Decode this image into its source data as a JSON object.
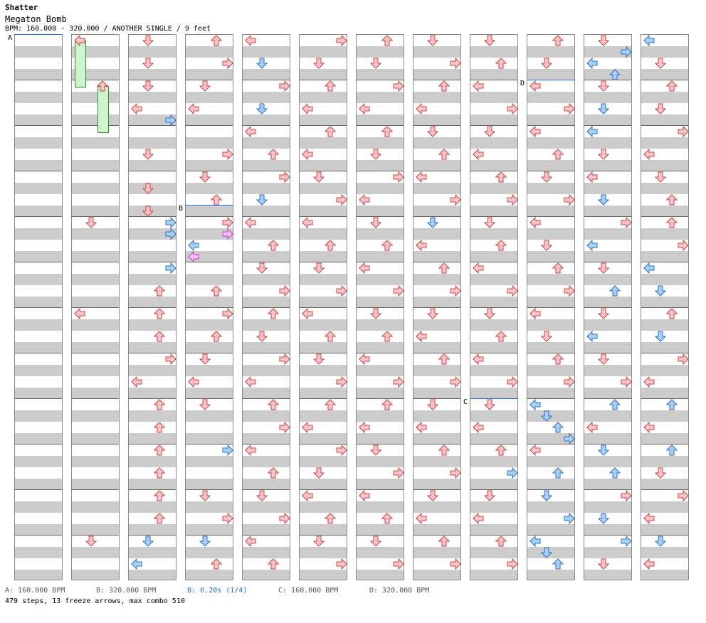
{
  "header": {
    "song_title": "Shatter",
    "artist": "Megaton Bomb",
    "chart_info": "BPM: 160.000 - 320.000 / ANOTHER SINGLE / 9 feet"
  },
  "legend": [
    {
      "text": "A: 160.000 BPM",
      "highlight": false
    },
    {
      "text": "B: 320.000 BPM",
      "highlight": false
    },
    {
      "text": "B: 0.20s (1/4)",
      "highlight": true
    },
    {
      "text": "C: 160.000 BPM",
      "highlight": false
    },
    {
      "text": "D: 320.000 BPM",
      "highlight": false
    }
  ],
  "stats": "479 steps, 13 freeze arrows, max combo 510",
  "markers": [
    {
      "label": "A",
      "column": 1,
      "beat": 0
    },
    {
      "label": "B",
      "column": 4,
      "beat": 60
    },
    {
      "label": "C",
      "column": 9,
      "beat": 128
    },
    {
      "label": "D",
      "column": 10,
      "beat": 16
    }
  ],
  "colors": {
    "quarter_fill": "#ffc8c8",
    "quarter_stroke": "#d04040",
    "eighth_fill": "#a8d0ff",
    "eighth_stroke": "#3070c0",
    "sixteenth_fill": "#ffc0ff",
    "sixteenth_stroke": "#c040c0",
    "freeze_fill": "#ccf5cc",
    "freeze_stroke": "#408040",
    "marker_line": "#2a6ed6"
  },
  "column_count": 12,
  "beats_per_column": 192,
  "notes": [
    [],
    [
      [
        0,
        0,
        "r",
        true
      ],
      [
        16,
        2,
        "r",
        true
      ],
      [
        64,
        1,
        "r"
      ],
      [
        96,
        0,
        "r"
      ],
      [
        176,
        1,
        "r"
      ]
    ],
    [
      [
        0,
        1,
        "r"
      ],
      [
        8,
        1,
        "r"
      ],
      [
        16,
        1,
        "r"
      ],
      [
        24,
        0,
        "r"
      ],
      [
        28,
        3,
        "b"
      ],
      [
        40,
        1,
        "r"
      ],
      [
        52,
        1,
        "r"
      ],
      [
        60,
        1,
        "r"
      ],
      [
        64,
        3,
        "b"
      ],
      [
        68,
        3,
        "b"
      ],
      [
        80,
        3,
        "b"
      ],
      [
        88,
        2,
        "r"
      ],
      [
        96,
        2,
        "r"
      ],
      [
        104,
        2,
        "r"
      ],
      [
        112,
        3,
        "r"
      ],
      [
        120,
        0,
        "r"
      ],
      [
        128,
        2,
        "r"
      ],
      [
        136,
        2,
        "r"
      ],
      [
        144,
        2,
        "r"
      ],
      [
        152,
        2,
        "r"
      ],
      [
        160,
        2,
        "r"
      ],
      [
        168,
        2,
        "r"
      ],
      [
        176,
        1,
        "b"
      ],
      [
        184,
        0,
        "b"
      ]
    ],
    [
      [
        0,
        2,
        "r"
      ],
      [
        8,
        3,
        "r"
      ],
      [
        16,
        1,
        "r"
      ],
      [
        24,
        0,
        "r"
      ],
      [
        40,
        3,
        "r"
      ],
      [
        48,
        1,
        "r"
      ],
      [
        56,
        2,
        "r"
      ],
      [
        64,
        3,
        "r"
      ],
      [
        68,
        3,
        "s"
      ],
      [
        72,
        0,
        "b"
      ],
      [
        76,
        0,
        "s"
      ],
      [
        88,
        2,
        "r"
      ],
      [
        96,
        3,
        "r"
      ],
      [
        104,
        2,
        "r"
      ],
      [
        112,
        1,
        "r"
      ],
      [
        120,
        0,
        "r"
      ],
      [
        128,
        1,
        "r"
      ],
      [
        144,
        3,
        "b"
      ],
      [
        160,
        1,
        "r"
      ],
      [
        168,
        3,
        "r"
      ],
      [
        176,
        1,
        "b"
      ],
      [
        184,
        2,
        "r"
      ]
    ],
    [
      [
        0,
        0,
        "r"
      ],
      [
        8,
        1,
        "b"
      ],
      [
        16,
        3,
        "r"
      ],
      [
        24,
        1,
        "b"
      ],
      [
        32,
        0,
        "r"
      ],
      [
        40,
        2,
        "r"
      ],
      [
        48,
        3,
        "r"
      ],
      [
        56,
        1,
        "b"
      ],
      [
        64,
        0,
        "r"
      ],
      [
        72,
        2,
        "r"
      ],
      [
        80,
        1,
        "r"
      ],
      [
        88,
        3,
        "r"
      ],
      [
        96,
        2,
        "r"
      ],
      [
        104,
        1,
        "r"
      ],
      [
        112,
        3,
        "r"
      ],
      [
        120,
        0,
        "r"
      ],
      [
        128,
        2,
        "r"
      ],
      [
        136,
        3,
        "r"
      ],
      [
        144,
        0,
        "r"
      ],
      [
        152,
        2,
        "r"
      ],
      [
        160,
        1,
        "r"
      ],
      [
        168,
        3,
        "r"
      ],
      [
        176,
        0,
        "r"
      ],
      [
        184,
        2,
        "r"
      ]
    ],
    [
      [
        0,
        3,
        "r"
      ],
      [
        8,
        1,
        "r"
      ],
      [
        16,
        2,
        "r"
      ],
      [
        24,
        0,
        "r"
      ],
      [
        32,
        2,
        "r"
      ],
      [
        40,
        0,
        "r"
      ],
      [
        48,
        1,
        "r"
      ],
      [
        56,
        3,
        "r"
      ],
      [
        64,
        0,
        "r"
      ],
      [
        72,
        2,
        "r"
      ],
      [
        80,
        1,
        "r"
      ],
      [
        88,
        3,
        "r"
      ],
      [
        96,
        0,
        "r"
      ],
      [
        104,
        2,
        "r"
      ],
      [
        112,
        1,
        "r"
      ],
      [
        120,
        3,
        "r"
      ],
      [
        128,
        2,
        "r"
      ],
      [
        136,
        0,
        "r"
      ],
      [
        144,
        3,
        "r"
      ],
      [
        152,
        1,
        "r"
      ],
      [
        160,
        0,
        "r"
      ],
      [
        168,
        2,
        "r"
      ],
      [
        176,
        1,
        "r"
      ],
      [
        184,
        3,
        "r"
      ]
    ],
    [
      [
        0,
        2,
        "r"
      ],
      [
        8,
        1,
        "r"
      ],
      [
        16,
        3,
        "r"
      ],
      [
        24,
        0,
        "r"
      ],
      [
        32,
        2,
        "r"
      ],
      [
        40,
        1,
        "r"
      ],
      [
        48,
        3,
        "r"
      ],
      [
        56,
        0,
        "r"
      ],
      [
        64,
        1,
        "r"
      ],
      [
        72,
        2,
        "r"
      ],
      [
        80,
        0,
        "r"
      ],
      [
        88,
        3,
        "r"
      ],
      [
        96,
        1,
        "r"
      ],
      [
        104,
        2,
        "r"
      ],
      [
        112,
        0,
        "r"
      ],
      [
        120,
        3,
        "r"
      ],
      [
        128,
        2,
        "r"
      ],
      [
        136,
        0,
        "r"
      ],
      [
        144,
        1,
        "r"
      ],
      [
        152,
        3,
        "r"
      ],
      [
        160,
        0,
        "r"
      ],
      [
        168,
        2,
        "r"
      ],
      [
        176,
        1,
        "r"
      ],
      [
        184,
        3,
        "r"
      ]
    ],
    [
      [
        0,
        1,
        "r"
      ],
      [
        8,
        3,
        "r"
      ],
      [
        16,
        2,
        "r"
      ],
      [
        24,
        0,
        "r"
      ],
      [
        32,
        1,
        "r"
      ],
      [
        40,
        2,
        "r"
      ],
      [
        48,
        0,
        "r"
      ],
      [
        56,
        3,
        "r"
      ],
      [
        64,
        1,
        "b"
      ],
      [
        72,
        0,
        "r"
      ],
      [
        80,
        2,
        "r"
      ],
      [
        88,
        3,
        "r"
      ],
      [
        96,
        1,
        "r"
      ],
      [
        104,
        0,
        "r"
      ],
      [
        112,
        2,
        "r"
      ],
      [
        120,
        3,
        "r"
      ],
      [
        128,
        1,
        "r"
      ],
      [
        136,
        0,
        "r"
      ],
      [
        144,
        2,
        "r"
      ],
      [
        152,
        3,
        "r"
      ],
      [
        160,
        1,
        "r"
      ],
      [
        168,
        0,
        "r"
      ],
      [
        176,
        2,
        "r"
      ],
      [
        184,
        3,
        "r"
      ]
    ],
    [
      [
        0,
        1,
        "r"
      ],
      [
        8,
        2,
        "r"
      ],
      [
        16,
        0,
        "r"
      ],
      [
        24,
        3,
        "r"
      ],
      [
        32,
        1,
        "r"
      ],
      [
        40,
        0,
        "r"
      ],
      [
        48,
        2,
        "r"
      ],
      [
        56,
        3,
        "r"
      ],
      [
        64,
        1,
        "r"
      ],
      [
        72,
        2,
        "r"
      ],
      [
        80,
        0,
        "r"
      ],
      [
        88,
        3,
        "r"
      ],
      [
        96,
        1,
        "r"
      ],
      [
        104,
        2,
        "r"
      ],
      [
        112,
        0,
        "r"
      ],
      [
        120,
        3,
        "r"
      ],
      [
        128,
        1,
        "r"
      ],
      [
        136,
        0,
        "r"
      ],
      [
        144,
        2,
        "r"
      ],
      [
        152,
        3,
        "b"
      ],
      [
        160,
        1,
        "r"
      ],
      [
        168,
        0,
        "r"
      ],
      [
        176,
        2,
        "r"
      ],
      [
        184,
        3,
        "r"
      ]
    ],
    [
      [
        0,
        2,
        "r"
      ],
      [
        8,
        1,
        "r"
      ],
      [
        16,
        0,
        "r"
      ],
      [
        24,
        3,
        "r"
      ],
      [
        32,
        0,
        "r"
      ],
      [
        40,
        2,
        "r"
      ],
      [
        48,
        1,
        "r"
      ],
      [
        56,
        3,
        "r"
      ],
      [
        64,
        0,
        "r"
      ],
      [
        72,
        1,
        "r"
      ],
      [
        80,
        2,
        "r"
      ],
      [
        88,
        3,
        "r"
      ],
      [
        96,
        0,
        "r"
      ],
      [
        104,
        1,
        "r"
      ],
      [
        112,
        2,
        "r"
      ],
      [
        120,
        3,
        "r"
      ],
      [
        128,
        0,
        "b"
      ],
      [
        132,
        1,
        "b"
      ],
      [
        136,
        2,
        "b"
      ],
      [
        140,
        3,
        "b"
      ],
      [
        144,
        0,
        "r"
      ],
      [
        152,
        2,
        "b"
      ],
      [
        160,
        1,
        "b"
      ],
      [
        168,
        3,
        "b"
      ],
      [
        176,
        0,
        "b"
      ],
      [
        180,
        1,
        "b"
      ],
      [
        184,
        2,
        "b"
      ]
    ],
    [
      [
        0,
        1,
        "r"
      ],
      [
        4,
        3,
        "b"
      ],
      [
        8,
        0,
        "b"
      ],
      [
        12,
        2,
        "b"
      ],
      [
        16,
        1,
        "r"
      ],
      [
        24,
        1,
        "b"
      ],
      [
        32,
        0,
        "b"
      ],
      [
        40,
        1,
        "r"
      ],
      [
        48,
        0,
        "r"
      ],
      [
        56,
        1,
        "b"
      ],
      [
        64,
        3,
        "r"
      ],
      [
        72,
        0,
        "b"
      ],
      [
        80,
        1,
        "r"
      ],
      [
        88,
        2,
        "b"
      ],
      [
        96,
        1,
        "r"
      ],
      [
        104,
        0,
        "b"
      ],
      [
        112,
        1,
        "r"
      ],
      [
        120,
        3,
        "r"
      ],
      [
        128,
        2,
        "b"
      ],
      [
        136,
        0,
        "r"
      ],
      [
        144,
        1,
        "b"
      ],
      [
        152,
        2,
        "b"
      ],
      [
        160,
        3,
        "r"
      ],
      [
        168,
        1,
        "b"
      ],
      [
        176,
        3,
        "b"
      ],
      [
        184,
        1,
        "r"
      ]
    ],
    [
      [
        0,
        0,
        "b"
      ],
      [
        8,
        1,
        "r"
      ],
      [
        16,
        2,
        "r"
      ],
      [
        24,
        1,
        "r"
      ],
      [
        32,
        3,
        "r"
      ],
      [
        40,
        0,
        "r"
      ],
      [
        48,
        1,
        "r"
      ],
      [
        56,
        2,
        "r"
      ],
      [
        64,
        2,
        "r"
      ],
      [
        72,
        3,
        "r"
      ],
      [
        80,
        0,
        "b"
      ],
      [
        88,
        1,
        "b"
      ],
      [
        96,
        2,
        "r"
      ],
      [
        104,
        1,
        "b"
      ],
      [
        112,
        3,
        "r"
      ],
      [
        120,
        0,
        "r"
      ],
      [
        128,
        2,
        "b"
      ],
      [
        136,
        0,
        "r"
      ],
      [
        144,
        2,
        "b"
      ],
      [
        152,
        1,
        "r"
      ],
      [
        160,
        3,
        "r"
      ],
      [
        168,
        0,
        "r"
      ],
      [
        176,
        1,
        "b"
      ],
      [
        184,
        0,
        "r"
      ]
    ]
  ]
}
